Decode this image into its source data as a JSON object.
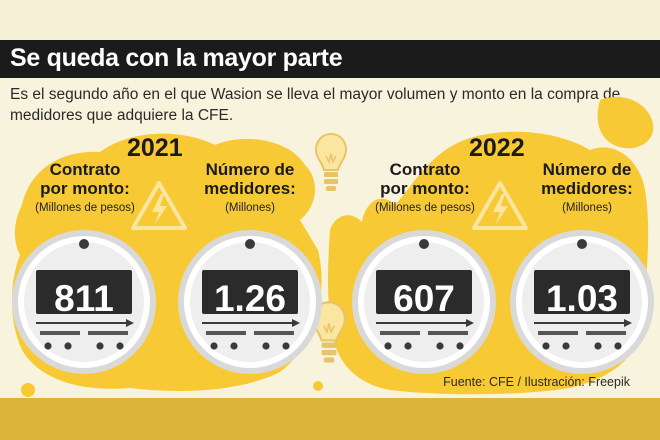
{
  "title": "Se queda con la mayor parte",
  "subtitle": "Es el segundo año en el que Wasion se lleva el mayor volumen y monto en la compra de medidores que adquiere la CFE.",
  "colors": {
    "accent": "#f7c935",
    "dark": "#1b1b1b",
    "background": "#f7f3dc",
    "footer": "#dcb43a"
  },
  "years": [
    {
      "year": "2021",
      "contract_label": "Contrato\npor monto:",
      "contract_unit": "(Millones de pesos)",
      "contract_value": "811",
      "meters_label": "Número de\nmedidores:",
      "meters_unit": "(Millones)",
      "meters_value": "1.26"
    },
    {
      "year": "2022",
      "contract_label": "Contrato\npor monto:",
      "contract_unit": "(Millones de pesos)",
      "contract_value": "607",
      "meters_label": "Número de\nmedidores:",
      "meters_unit": "(Millones)",
      "meters_value": "1.03"
    }
  ],
  "icons": [
    "warning-electric-icon",
    "light-bulb-icon",
    "electric-meter-icon"
  ],
  "source": "Fuente: CFE / Ilustración: Freepik"
}
